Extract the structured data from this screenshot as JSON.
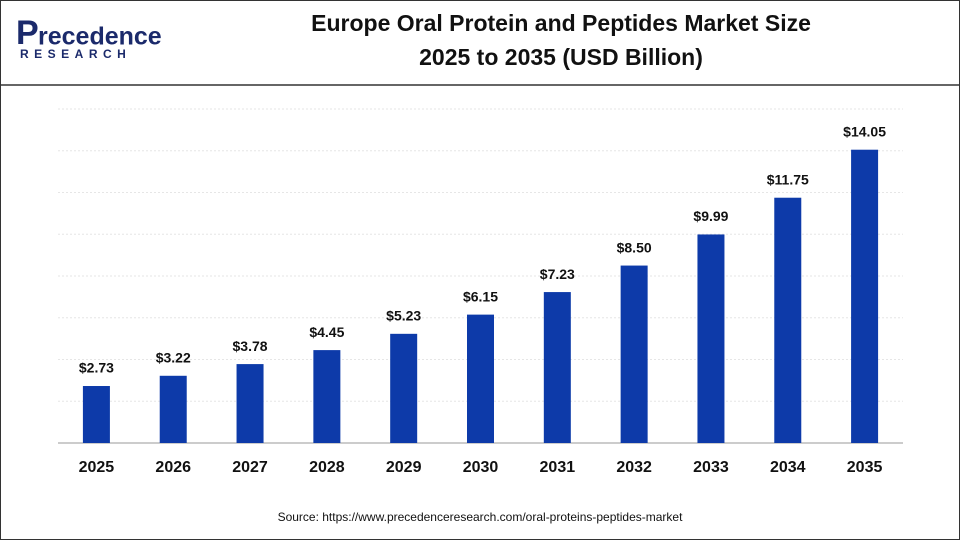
{
  "logo": {
    "name": "recedence",
    "initial": "P",
    "tagline": "RESEARCH"
  },
  "chart_data": {
    "type": "bar",
    "title": "Europe Oral Protein and Peptides Market Size",
    "subtitle": "2025 to 2035 (USD Billion)",
    "categories": [
      "2025",
      "2026",
      "2027",
      "2028",
      "2029",
      "2030",
      "2031",
      "2032",
      "2033",
      "2034",
      "2035"
    ],
    "values": [
      2.73,
      3.22,
      3.78,
      4.45,
      5.23,
      6.15,
      7.23,
      8.5,
      9.99,
      11.75,
      14.05
    ],
    "value_labels": [
      "$2.73",
      "$3.22",
      "$3.78",
      "$4.45",
      "$5.23",
      "$6.15",
      "$7.23",
      "$8.50",
      "$9.99",
      "$11.75",
      "$14.05"
    ],
    "color": "#0d3aa9",
    "ylim": [
      0,
      16
    ],
    "yticks": [
      0,
      2,
      4,
      6,
      8,
      10,
      12,
      14,
      16
    ],
    "grid": true,
    "source": "Source: https://www.precedenceresearch.com/oral-proteins-peptides-market"
  }
}
